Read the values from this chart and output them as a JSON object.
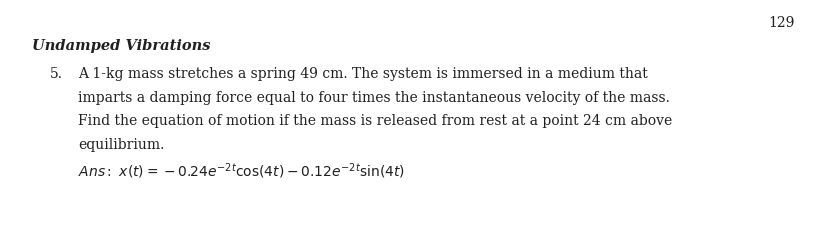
{
  "page_number": "129",
  "section_title": "Undamped Vibrations",
  "problem_number": "5.",
  "problem_text_lines": [
    "A 1-kg mass stretches a spring 49 cm. The system is immersed in a medium that",
    "imparts a damping force equal to four times the instantaneous velocity of the mass.",
    "Find the equation of motion if the mass is released from rest at a point 24 cm above",
    "equilibrium."
  ],
  "background_color": "#ffffff",
  "text_color": "#231f20",
  "page_num_fontsize": 10,
  "section_title_fontsize": 10.5,
  "body_fontsize": 10,
  "ans_fontsize": 10
}
